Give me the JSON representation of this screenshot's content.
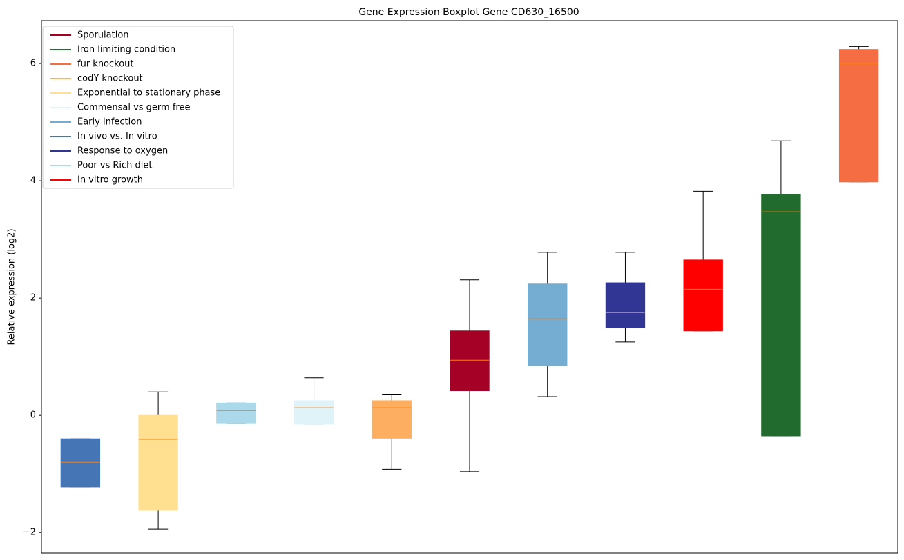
{
  "chart_data": {
    "type": "box",
    "title": "Gene Expression Boxplot Gene CD630_16500",
    "y_label": "Relative expression (log2)",
    "xlim": [
      0.5,
      11.5
    ],
    "ylim": [
      -2.35,
      6.73
    ],
    "yticks": [
      {
        "value": -2,
        "label": "−2"
      },
      0,
      2,
      4,
      6
    ],
    "legend": "upper left",
    "median_color": "#ff7f0e",
    "series": [
      {
        "name": "Sporulation",
        "color": "#a50026",
        "x": 6,
        "whislo": -0.96,
        "q1": 0.42,
        "median": 0.94,
        "q3": 1.44,
        "whishi": 2.31
      },
      {
        "name": "Iron limiting condition",
        "color": "#226b2e",
        "x": 10,
        "whislo": -0.35,
        "q1": -0.35,
        "median": 3.47,
        "q3": 3.76,
        "whishi": 4.68
      },
      {
        "name": "fur knockout",
        "color": "#f46d43",
        "x": 11,
        "whislo": 3.98,
        "q1": 3.98,
        "median": 6.0,
        "q3": 6.24,
        "whishi": 6.29
      },
      {
        "name": "codY knockout",
        "color": "#fdae61",
        "x": 5,
        "whislo": -0.92,
        "q1": -0.39,
        "median": 0.13,
        "q3": 0.25,
        "whishi": 0.35
      },
      {
        "name": "Exponential to stationary phase",
        "color": "#fee090",
        "x": 2,
        "whislo": -1.94,
        "q1": -1.62,
        "median": -0.41,
        "q3": 0,
        "whishi": 0.4
      },
      {
        "name": "Commensal vs germ free",
        "color": "#e0f3f8",
        "x": 4,
        "whislo": -0.15,
        "q1": -0.15,
        "median": 0.13,
        "q3": 0.25,
        "whishi": 0.64
      },
      {
        "name": "Early infection",
        "color": "#74add1",
        "x": 7,
        "whislo": 0.32,
        "q1": 0.85,
        "median": 1.65,
        "q3": 2.24,
        "whishi": 2.78
      },
      {
        "name": "In vivo vs. In vitro",
        "color": "#4575b4",
        "x": 1,
        "whislo": -1.22,
        "q1": -1.22,
        "median": -0.8,
        "q3": -0.4,
        "whishi": -0.4
      },
      {
        "name": "Response to oxygen",
        "color": "#313695",
        "x": 8,
        "whislo": 1.25,
        "q1": 1.49,
        "median": 1.75,
        "q3": 2.26,
        "whishi": 2.78
      },
      {
        "name": "Poor vs Rich diet",
        "color": "#abd9e9",
        "x": 3,
        "whislo": -0.14,
        "q1": -0.14,
        "median": 0.08,
        "q3": 0.21,
        "whishi": 0.21
      },
      {
        "name": "In vitro growth",
        "color": "#ff0000",
        "x": 9,
        "whislo": 1.44,
        "q1": 1.44,
        "median": 2.15,
        "q3": 2.65,
        "whishi": 3.82
      }
    ]
  }
}
